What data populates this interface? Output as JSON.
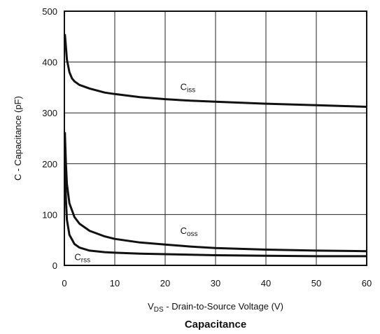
{
  "chart_data": {
    "type": "line",
    "title": "Capacitance",
    "xlabel": {
      "main": "V",
      "sub": "DS",
      "rest": " - Drain-to-Source Voltage (V)"
    },
    "ylabel": "C - Capacitance (pF)",
    "xlim": [
      0,
      60
    ],
    "ylim": [
      0,
      500
    ],
    "xticks": [
      0,
      10,
      20,
      30,
      40,
      50,
      60
    ],
    "yticks": [
      0,
      100,
      200,
      300,
      400,
      500
    ],
    "grid": true,
    "series": [
      {
        "name": "Ciss",
        "label": {
          "main": "C",
          "sub": "iss"
        },
        "x": [
          0.1,
          0.3,
          0.5,
          1,
          1.5,
          2,
          3,
          5,
          8,
          10,
          15,
          20,
          25,
          30,
          40,
          50,
          60
        ],
        "y": [
          455,
          430,
          405,
          380,
          368,
          362,
          355,
          348,
          340,
          337,
          331,
          327,
          324,
          322,
          318,
          315,
          312
        ]
      },
      {
        "name": "Coss",
        "label": {
          "main": "C",
          "sub": "oss"
        },
        "x": [
          0.1,
          0.3,
          0.5,
          1,
          2,
          3,
          5,
          8,
          10,
          15,
          20,
          25,
          30,
          40,
          50,
          60
        ],
        "y": [
          262,
          200,
          160,
          122,
          95,
          82,
          68,
          57,
          52,
          45,
          41,
          37,
          34,
          31,
          29,
          28
        ]
      },
      {
        "name": "Crss",
        "label": {
          "main": "C",
          "sub": "rss"
        },
        "x": [
          0.1,
          0.3,
          0.5,
          1,
          2,
          3,
          5,
          8,
          10,
          15,
          20,
          30,
          40,
          50,
          60
        ],
        "y": [
          195,
          130,
          90,
          60,
          42,
          35,
          29,
          26,
          25,
          23,
          22,
          20,
          19,
          18,
          18
        ]
      }
    ]
  }
}
